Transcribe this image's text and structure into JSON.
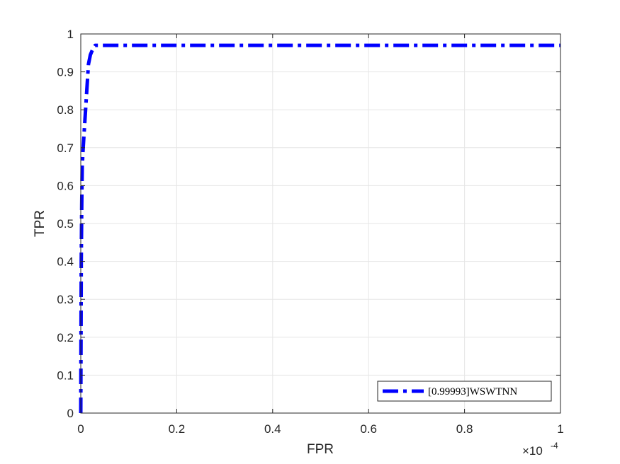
{
  "colors": {
    "series": "#0000ff",
    "axis": "#262626",
    "grid": "#e6e6e6"
  },
  "chart_data": {
    "type": "line",
    "title": "",
    "xlabel": "FPR",
    "ylabel": "TPR",
    "xlim": [
      0,
      1
    ],
    "ylim": [
      0,
      1
    ],
    "x_exponent": {
      "base": "×10",
      "power": "-4"
    },
    "x_tick_values": [
      0,
      0.2,
      0.4,
      0.6,
      0.8,
      1
    ],
    "x_tick_labels": [
      "0",
      "0.2",
      "0.4",
      "0.6",
      "0.8",
      "1"
    ],
    "y_tick_values": [
      0,
      0.1,
      0.2,
      0.3,
      0.4,
      0.5,
      0.6,
      0.7,
      0.8,
      0.9,
      1
    ],
    "y_tick_labels": [
      "0",
      "0.1",
      "0.2",
      "0.3",
      "0.4",
      "0.5",
      "0.6",
      "0.7",
      "0.8",
      "0.9",
      "1"
    ],
    "grid": true,
    "legend_position": "bottom-right",
    "series": [
      {
        "name": "[0.99993]WSWTNN",
        "line_style": "dash-dot",
        "x": [
          0,
          0.0005,
          0.001,
          0.002,
          0.003,
          0.005,
          0.008,
          0.012,
          0.016,
          0.02,
          0.025,
          0.03,
          0.04,
          0.06,
          1
        ],
        "y": [
          0,
          0.2,
          0.4,
          0.55,
          0.65,
          0.7,
          0.76,
          0.84,
          0.92,
          0.945,
          0.96,
          0.97,
          0.97,
          0.97,
          0.97
        ]
      }
    ]
  }
}
